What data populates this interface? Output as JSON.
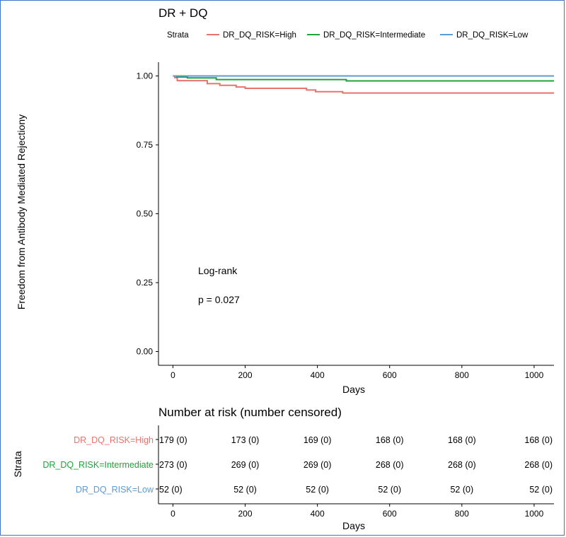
{
  "chart_data": {
    "type": "line",
    "title": "DR + DQ",
    "xlabel": "Days",
    "ylabel": "Freedom from Antibody Mediated Rejectiony",
    "xlim": [
      -40,
      1055
    ],
    "ylim": [
      -0.05,
      1.05
    ],
    "x_ticks": [
      "0",
      "200",
      "400",
      "600",
      "800",
      "1000"
    ],
    "x_tick_values": [
      0,
      200,
      400,
      600,
      800,
      1000
    ],
    "y_ticks": [
      "0.00",
      "0.25",
      "0.50",
      "0.75",
      "1.00"
    ],
    "y_tick_values": [
      0,
      0.25,
      0.5,
      0.75,
      1.0
    ],
    "legend_title": "Strata",
    "legend_position": "top",
    "grid": false,
    "series": [
      {
        "name": "DR_DQ_RISK=High",
        "color": "#e8736b",
        "points": [
          [
            0,
            1.0
          ],
          [
            5,
            0.994
          ],
          [
            12,
            0.983
          ],
          [
            70,
            0.983
          ],
          [
            95,
            0.972
          ],
          [
            130,
            0.966
          ],
          [
            175,
            0.96
          ],
          [
            200,
            0.955
          ],
          [
            230,
            0.955
          ],
          [
            370,
            0.949
          ],
          [
            395,
            0.943
          ],
          [
            450,
            0.943
          ],
          [
            470,
            0.938
          ],
          [
            1055,
            0.938
          ]
        ]
      },
      {
        "name": "DR_DQ_RISK=Intermediate",
        "color": "#1fa33b",
        "points": [
          [
            0,
            1.0
          ],
          [
            10,
            0.996
          ],
          [
            40,
            0.993
          ],
          [
            120,
            0.987
          ],
          [
            480,
            0.982
          ],
          [
            1055,
            0.982
          ]
        ]
      },
      {
        "name": "DR_DQ_RISK=Low",
        "color": "#5b9bd5",
        "points": [
          [
            0,
            1.0
          ],
          [
            1055,
            1.0
          ]
        ]
      }
    ],
    "annotations": [
      "Log-rank",
      "p = 0.027"
    ]
  },
  "risk_table": {
    "title": "Number at risk (number censored)",
    "ylabel": "Strata",
    "xlabel": "Days",
    "x_ticks": [
      "0",
      "200",
      "400",
      "600",
      "800",
      "1000"
    ],
    "rows": [
      {
        "label": "DR_DQ_RISK=High",
        "color": "#e8736b",
        "values": [
          "179 (0)",
          "173 (0)",
          "169 (0)",
          "168 (0)",
          "168 (0)",
          "168 (0)"
        ]
      },
      {
        "label": "DR_DQ_RISK=Intermediate",
        "color": "#1fa33b",
        "values": [
          "273 (0)",
          "269 (0)",
          "269 (0)",
          "268 (0)",
          "268 (0)",
          "268 (0)"
        ]
      },
      {
        "label": "DR_DQ_RISK=Low",
        "color": "#5b9bd5",
        "values": [
          "52 (0)",
          "52 (0)",
          "52 (0)",
          "52 (0)",
          "52 (0)",
          "52 (0)"
        ]
      }
    ]
  }
}
